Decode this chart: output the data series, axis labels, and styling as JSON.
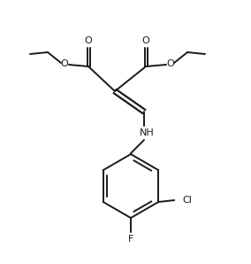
{
  "bg_color": "#ffffff",
  "line_color": "#1a1a1a",
  "line_width": 1.4,
  "fig_width": 2.84,
  "fig_height": 2.98,
  "dpi": 100,
  "xlim": [
    0,
    284
  ],
  "ylim": [
    0,
    298
  ]
}
